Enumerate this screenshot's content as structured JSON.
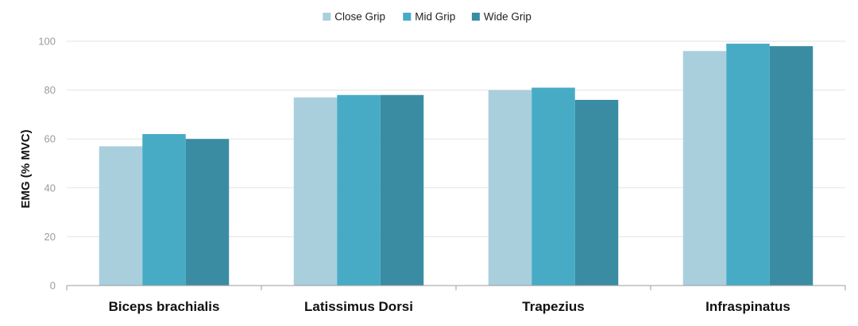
{
  "chart_data": {
    "type": "bar",
    "categories": [
      "Biceps brachialis",
      "Latissimus Dorsi",
      "Trapezius",
      "Infraspinatus"
    ],
    "series": [
      {
        "name": "Close Grip",
        "color": "#a9cfdd",
        "values": [
          57,
          77,
          80,
          96
        ]
      },
      {
        "name": "Mid Grip",
        "color": "#47abc6",
        "values": [
          62,
          78,
          81,
          99
        ]
      },
      {
        "name": "Wide Grip",
        "color": "#3a8ca3",
        "values": [
          60,
          78,
          76,
          98
        ]
      }
    ],
    "title": "",
    "xlabel": "",
    "ylabel": "EMG (% MVC)",
    "ylim": [
      0,
      100
    ],
    "yticks": [
      0,
      20,
      40,
      60,
      80,
      100
    ],
    "grid": true,
    "legend": "top-center"
  }
}
